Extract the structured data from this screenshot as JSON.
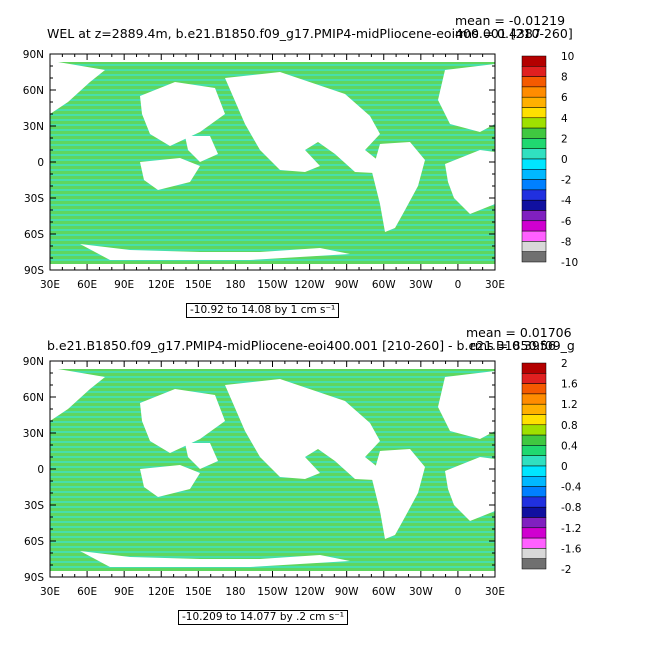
{
  "colors": {
    "ocean_zero": "#5fd65f",
    "ocean_negative": "#33e8e8",
    "land": "#ffffff"
  },
  "panels": [
    {
      "title": "WEL at z=2889.4m, b.e21.B1850.f09_g17.PMIP4-midPliocene-eoi400.001  [210-260]",
      "mean_text": "mean = -0.01219",
      "rms_text": "rms = 0.4387",
      "range_text": "-10.92 to 14.08 by 1 cm s⁻¹",
      "lon_ticks": [
        "30E",
        "60E",
        "90E",
        "120E",
        "150E",
        "180",
        "150W",
        "120W",
        "90W",
        "60W",
        "30W",
        "0",
        "30E"
      ],
      "lat_ticks": [
        "90N",
        "60N",
        "30N",
        "0",
        "30S",
        "60S",
        "90S"
      ],
      "colorbar": {
        "labels": [
          "10",
          "8",
          "6",
          "4",
          "2",
          "0",
          "-2",
          "-4",
          "-6",
          "-8",
          "-10"
        ],
        "colors": [
          "#b40000",
          "#e02020",
          "#f55a00",
          "#ff8c00",
          "#ffb000",
          "#ffe000",
          "#9fe000",
          "#40c840",
          "#20d870",
          "#30e0c0",
          "#00e6ff",
          "#00b8ff",
          "#0080ff",
          "#2030e0",
          "#1010a0",
          "#8020c0",
          "#d000d0",
          "#ff60ff",
          "#d8d8d8",
          "#707070"
        ]
      }
    },
    {
      "title": "b.e21.B1850.f09_g17.PMIP4-midPliocene-eoi400.001  [210-260] - b.e21.B1850.f09_g",
      "mean_text": "mean = 0.01706",
      "rms_text": "rms = 0.3956",
      "range_text": "-10.209 to 14.077 by .2 cm s⁻¹",
      "lon_ticks": [
        "30E",
        "60E",
        "90E",
        "120E",
        "150E",
        "180",
        "150W",
        "120W",
        "90W",
        "60W",
        "30W",
        "0",
        "30E"
      ],
      "lat_ticks": [
        "90N",
        "60N",
        "30N",
        "0",
        "30S",
        "60S",
        "90S"
      ],
      "colorbar": {
        "labels": [
          "2",
          "1.6",
          "1.2",
          "0.8",
          "0.4",
          "0",
          "-0.4",
          "-0.8",
          "-1.2",
          "-1.6",
          "-2"
        ],
        "colors": [
          "#b40000",
          "#e02020",
          "#f55a00",
          "#ff8c00",
          "#ffb000",
          "#ffe000",
          "#9fe000",
          "#40c840",
          "#20d870",
          "#30e0c0",
          "#00e6ff",
          "#00b8ff",
          "#0080ff",
          "#2030e0",
          "#1010a0",
          "#8020c0",
          "#d000d0",
          "#ff60ff",
          "#d8d8d8",
          "#707070"
        ]
      }
    }
  ]
}
